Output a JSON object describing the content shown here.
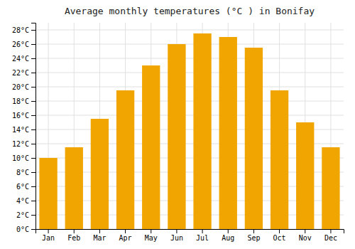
{
  "chart_data": {
    "type": "bar",
    "title": "Average monthly temperatures (°C ) in Bonifay",
    "categories": [
      "Jan",
      "Feb",
      "Mar",
      "Apr",
      "May",
      "Jun",
      "Jul",
      "Aug",
      "Sep",
      "Oct",
      "Nov",
      "Dec"
    ],
    "values": [
      10.0,
      11.5,
      15.5,
      19.5,
      23.0,
      26.0,
      27.5,
      27.0,
      25.5,
      19.5,
      15.0,
      11.5
    ],
    "color": "#F0A500",
    "ylim": [
      0,
      29
    ],
    "yticks": [
      {
        "value": 0,
        "label": "0°C"
      },
      {
        "value": 2,
        "label": "2°C"
      },
      {
        "value": 4,
        "label": "4°C"
      },
      {
        "value": 6,
        "label": "6°C"
      },
      {
        "value": 8,
        "label": "8°C"
      },
      {
        "value": 10,
        "label": "10°C"
      },
      {
        "value": 12,
        "label": "12°C"
      },
      {
        "value": 14,
        "label": "14°C"
      },
      {
        "value": 16,
        "label": "16°C"
      },
      {
        "value": 18,
        "label": "18°C"
      },
      {
        "value": 20,
        "label": "20°C"
      },
      {
        "value": 22,
        "label": "22°C"
      },
      {
        "value": 24,
        "label": "24°C"
      },
      {
        "value": 26,
        "label": "26°C"
      },
      {
        "value": 28,
        "label": "28°C"
      }
    ],
    "grid": true
  }
}
